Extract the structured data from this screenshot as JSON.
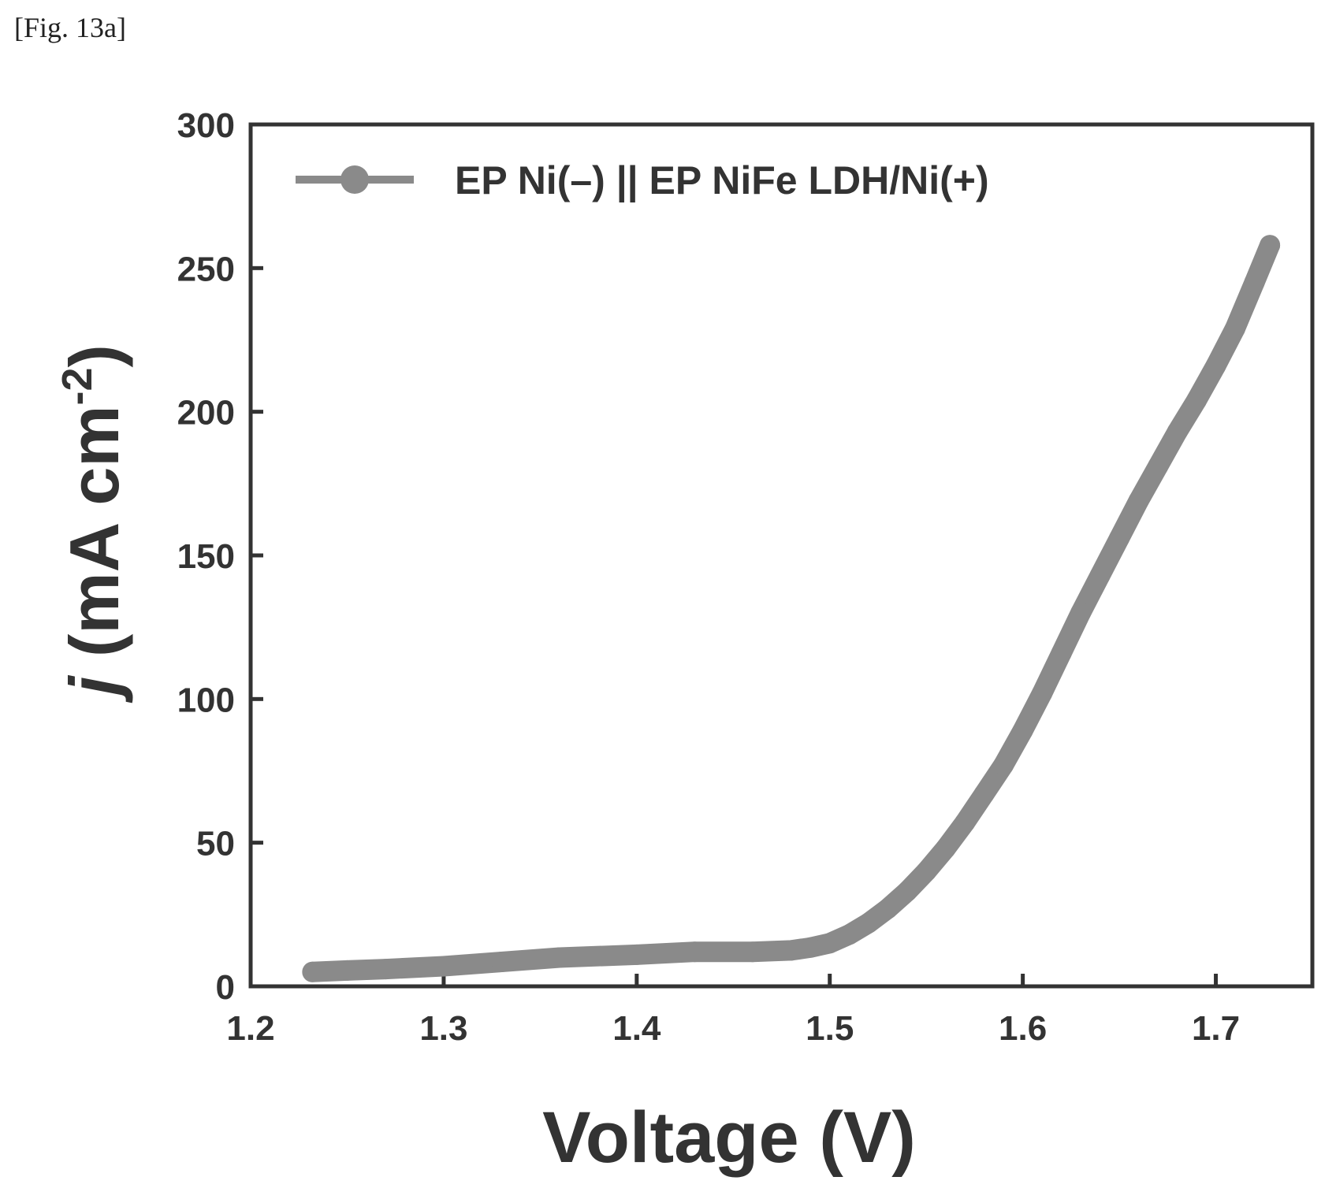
{
  "figure_label": "[Fig. 13a]",
  "chart_data": {
    "type": "line",
    "xlabel": "Voltage (V)",
    "ylabel_prefix": "j",
    "ylabel_main": " (mA cm",
    "ylabel_sup": "-2",
    "ylabel_suffix": ")",
    "xlim": [
      1.2,
      1.75
    ],
    "ylim": [
      0,
      300
    ],
    "xticks": [
      1.2,
      1.3,
      1.4,
      1.5,
      1.6,
      1.7
    ],
    "yticks": [
      0,
      50,
      100,
      150,
      200,
      250,
      300
    ],
    "xtick_labels": [
      "1.2",
      "1.3",
      "1.4",
      "1.5",
      "1.6",
      "1.7"
    ],
    "ytick_labels": [
      "0",
      "50",
      "100",
      "150",
      "200",
      "250",
      "300"
    ],
    "grid": false,
    "legend_position": "top-left",
    "series": [
      {
        "name": "EP Ni(–) || EP NiFe LDH/Ni(+)",
        "color": "#8a8a8a",
        "x": [
          1.232,
          1.25,
          1.27,
          1.3,
          1.33,
          1.36,
          1.4,
          1.43,
          1.46,
          1.48,
          1.49,
          1.5,
          1.51,
          1.52,
          1.53,
          1.54,
          1.55,
          1.56,
          1.57,
          1.58,
          1.59,
          1.6,
          1.61,
          1.62,
          1.63,
          1.64,
          1.65,
          1.66,
          1.67,
          1.68,
          1.69,
          1.7,
          1.71,
          1.72,
          1.728
        ],
        "y": [
          5,
          5.5,
          6,
          7,
          8.5,
          10,
          11,
          12,
          12,
          12.5,
          13.5,
          15,
          18,
          22,
          27,
          33,
          40,
          48,
          57,
          67,
          77,
          89,
          102,
          116,
          130,
          143,
          156,
          169,
          181,
          193,
          204,
          216,
          229,
          245,
          258
        ]
      }
    ]
  }
}
